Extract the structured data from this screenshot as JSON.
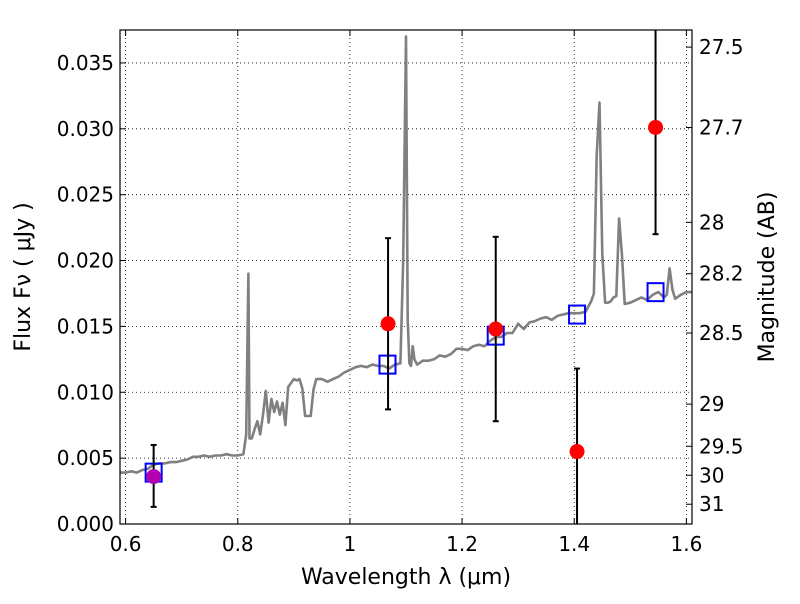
{
  "chart_data": {
    "type": "scatter",
    "xlabel": "Wavelength  λ (μm)",
    "ylabel": "Flux  Fν  ( μJy )",
    "y2label": "Magnitude (AB)",
    "xlim": [
      0.59,
      1.61
    ],
    "ylim": [
      0.0,
      0.0375
    ],
    "grid": true,
    "x_ticks": [
      0.6,
      0.8,
      1.0,
      1.2,
      1.4,
      1.6
    ],
    "x_tick_labels": [
      "0.6",
      "0.8",
      "1",
      "1.2",
      "1.4",
      "1.6"
    ],
    "y_ticks": [
      0.0,
      0.005,
      0.01,
      0.015,
      0.02,
      0.025,
      0.03,
      0.035
    ],
    "y_tick_labels": [
      "0.000",
      "0.005",
      "0.010",
      "0.015",
      "0.020",
      "0.025",
      "0.030",
      "0.035"
    ],
    "y2_ticks": [
      {
        "flux": 0.0362,
        "label": "27.5"
      },
      {
        "flux": 0.0301,
        "label": "27.7"
      },
      {
        "flux": 0.0229,
        "label": "28"
      },
      {
        "flux": 0.019,
        "label": "28.2"
      },
      {
        "flux": 0.0145,
        "label": "28.5"
      },
      {
        "flux": 0.0091,
        "label": "29"
      },
      {
        "flux": 0.0059,
        "label": "29.5"
      },
      {
        "flux": 0.0037,
        "label": "30"
      },
      {
        "flux": 0.0015,
        "label": "31"
      }
    ],
    "series": [
      {
        "kind": "line",
        "color": "#808080",
        "x": [
          0.59,
          0.6,
          0.61,
          0.62,
          0.63,
          0.64,
          0.65,
          0.66,
          0.67,
          0.68,
          0.69,
          0.7,
          0.71,
          0.72,
          0.73,
          0.74,
          0.75,
          0.76,
          0.77,
          0.78,
          0.79,
          0.8,
          0.81,
          0.815,
          0.819,
          0.821,
          0.825,
          0.83,
          0.835,
          0.84,
          0.845,
          0.85,
          0.855,
          0.86,
          0.865,
          0.87,
          0.875,
          0.88,
          0.885,
          0.89,
          0.9,
          0.905,
          0.91,
          0.915,
          0.92,
          0.93,
          0.935,
          0.94,
          0.95,
          0.96,
          0.97,
          0.98,
          0.99,
          1.0,
          1.01,
          1.02,
          1.03,
          1.04,
          1.05,
          1.06,
          1.07,
          1.08,
          1.09,
          1.095,
          1.1,
          1.103,
          1.106,
          1.109,
          1.112,
          1.115,
          1.12,
          1.13,
          1.14,
          1.15,
          1.16,
          1.17,
          1.18,
          1.19,
          1.2,
          1.21,
          1.22,
          1.23,
          1.24,
          1.25,
          1.26,
          1.27,
          1.28,
          1.29,
          1.3,
          1.31,
          1.32,
          1.33,
          1.34,
          1.35,
          1.36,
          1.37,
          1.38,
          1.39,
          1.4,
          1.41,
          1.42,
          1.43,
          1.435,
          1.44,
          1.445,
          1.45,
          1.455,
          1.46,
          1.465,
          1.47,
          1.475,
          1.48,
          1.485,
          1.49,
          1.5,
          1.51,
          1.52,
          1.53,
          1.54,
          1.55,
          1.56,
          1.565,
          1.57,
          1.575,
          1.58,
          1.59,
          1.6,
          1.61
        ],
        "y": [
          0.0039,
          0.0039,
          0.004,
          0.0039,
          0.0041,
          0.0042,
          0.0045,
          0.0046,
          0.0046,
          0.0047,
          0.0047,
          0.0048,
          0.0049,
          0.0051,
          0.0051,
          0.0052,
          0.0051,
          0.0052,
          0.0052,
          0.0053,
          0.0052,
          0.0052,
          0.0053,
          0.0068,
          0.019,
          0.0065,
          0.0065,
          0.0072,
          0.0078,
          0.0068,
          0.0083,
          0.0101,
          0.0077,
          0.0095,
          0.0085,
          0.0093,
          0.0083,
          0.0092,
          0.0075,
          0.0104,
          0.011,
          0.0109,
          0.011,
          0.0103,
          0.0082,
          0.0082,
          0.0102,
          0.011,
          0.011,
          0.0108,
          0.011,
          0.0112,
          0.0115,
          0.0117,
          0.0119,
          0.012,
          0.0119,
          0.0121,
          0.012,
          0.012,
          0.0118,
          0.0121,
          0.0122,
          0.02,
          0.037,
          0.0155,
          0.0122,
          0.012,
          0.0135,
          0.0125,
          0.0121,
          0.0124,
          0.0124,
          0.0125,
          0.0128,
          0.0127,
          0.0129,
          0.0133,
          0.0133,
          0.0132,
          0.0135,
          0.0136,
          0.0135,
          0.0139,
          0.0142,
          0.0142,
          0.0145,
          0.0145,
          0.0152,
          0.0148,
          0.0153,
          0.0154,
          0.0156,
          0.0157,
          0.0155,
          0.0158,
          0.0159,
          0.016,
          0.016,
          0.016,
          0.0161,
          0.0169,
          0.0175,
          0.028,
          0.032,
          0.0205,
          0.0168,
          0.0168,
          0.0169,
          0.0172,
          0.0173,
          0.0232,
          0.0205,
          0.0167,
          0.0168,
          0.017,
          0.0172,
          0.017,
          0.0174,
          0.0176,
          0.0172,
          0.0174,
          0.0194,
          0.0178,
          0.0171,
          0.0174,
          0.0176,
          0.0176
        ]
      },
      {
        "kind": "open-square",
        "color": "#0000ff",
        "x": [
          0.65,
          1.067,
          1.26,
          1.405,
          1.545
        ],
        "y": [
          0.0039,
          0.0121,
          0.0143,
          0.0159,
          0.0176
        ]
      },
      {
        "kind": "filled-circle-errorbar",
        "color": "#ff0000",
        "x": [
          1.068,
          1.26,
          1.405,
          1.545
        ],
        "y": [
          0.0152,
          0.0148,
          0.0055,
          0.0301
        ],
        "yerr_low": [
          0.0087,
          0.0078,
          0.0,
          0.022
        ],
        "yerr_high": [
          0.0217,
          0.0218,
          0.0118,
          0.0375
        ]
      },
      {
        "kind": "filled-circle-errorbar",
        "color": "#b000b0",
        "x": [
          0.65
        ],
        "y": [
          0.0036
        ],
        "yerr_low": [
          0.0013
        ],
        "yerr_high": [
          0.006
        ]
      }
    ]
  }
}
